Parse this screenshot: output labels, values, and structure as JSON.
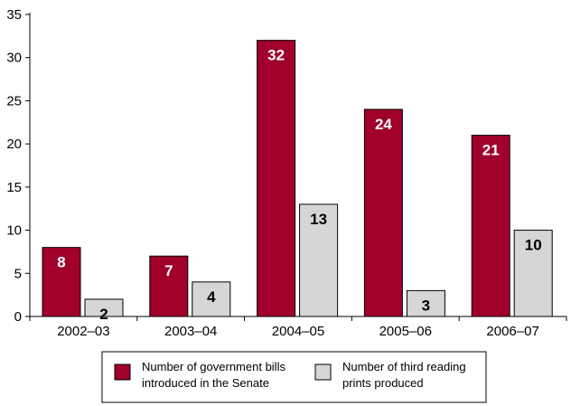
{
  "chart_data": {
    "type": "bar",
    "categories": [
      "2002–03",
      "2003–04",
      "2004–05",
      "2005–06",
      "2006–07"
    ],
    "series": [
      {
        "name": "Number of government bills introduced in the Senate",
        "legend_lines": [
          "Number of government bills",
          "introduced in the Senate"
        ],
        "values": [
          8,
          7,
          32,
          24,
          21
        ],
        "color": "#a0002a",
        "label_color": "#ffffff"
      },
      {
        "name": "Number of third reading prints produced",
        "legend_lines": [
          "Number of third reading",
          "prints produced"
        ],
        "values": [
          2,
          4,
          13,
          3,
          10
        ],
        "color": "#d6d6d6",
        "label_color": "#000000"
      }
    ],
    "ylim": [
      0,
      35
    ],
    "yticks": [
      0,
      5,
      10,
      15,
      20,
      25,
      30,
      35
    ],
    "grid": false,
    "legend_position": "bottom",
    "title": "",
    "xlabel": "",
    "ylabel": ""
  }
}
